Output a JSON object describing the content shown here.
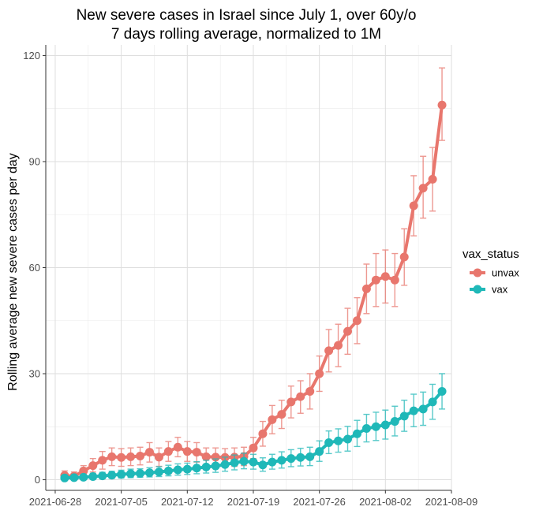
{
  "chart_data": {
    "type": "line",
    "title": "New severe cases in Israel since July 1, over 60y/o",
    "subtitle": "7 days rolling average, normalized to 1M",
    "xlabel": "",
    "ylabel": "Rolling average new severe cases per day",
    "x_ticks": [
      "2021-06-28",
      "2021-07-05",
      "2021-07-12",
      "2021-07-19",
      "2021-07-26",
      "2021-08-02",
      "2021-08-09"
    ],
    "y_ticks": [
      0,
      30,
      60,
      90,
      120
    ],
    "xlim": [
      "2021-06-27",
      "2021-08-09"
    ],
    "ylim": [
      -3,
      123
    ],
    "grid": true,
    "legend": {
      "title": "vax_status",
      "position": "right"
    },
    "x": [
      "2021-06-29",
      "2021-06-30",
      "2021-07-01",
      "2021-07-02",
      "2021-07-03",
      "2021-07-04",
      "2021-07-05",
      "2021-07-06",
      "2021-07-07",
      "2021-07-08",
      "2021-07-09",
      "2021-07-10",
      "2021-07-11",
      "2021-07-12",
      "2021-07-13",
      "2021-07-14",
      "2021-07-15",
      "2021-07-16",
      "2021-07-17",
      "2021-07-18",
      "2021-07-19",
      "2021-07-20",
      "2021-07-21",
      "2021-07-22",
      "2021-07-23",
      "2021-07-24",
      "2021-07-25",
      "2021-07-26",
      "2021-07-27",
      "2021-07-28",
      "2021-07-29",
      "2021-07-30",
      "2021-07-31",
      "2021-08-01",
      "2021-08-02",
      "2021-08-03",
      "2021-08-04",
      "2021-08-05",
      "2021-08-06",
      "2021-08-07",
      "2021-08-08"
    ],
    "series": [
      {
        "name": "unvax",
        "color": "#e8766d",
        "values": [
          1.2,
          1.0,
          2.5,
          4.0,
          5.5,
          6.5,
          6.3,
          6.5,
          6.7,
          7.8,
          6.4,
          8.0,
          9.2,
          8.0,
          7.8,
          6.5,
          6.4,
          6.3,
          6.4,
          6.6,
          9.0,
          13.0,
          17.0,
          18.5,
          22.0,
          23.5,
          25.0,
          30.0,
          36.5,
          38.0,
          42.0,
          45.0,
          54.0,
          56.5,
          57.5,
          56.5,
          63.0,
          77.5,
          82.5,
          85.0,
          106.0
        ],
        "error_low": [
          0.2,
          0.1,
          1.0,
          2.2,
          3.0,
          4.0,
          3.8,
          4.0,
          4.2,
          5.0,
          3.8,
          5.2,
          6.5,
          5.2,
          5.0,
          4.0,
          3.8,
          3.7,
          3.8,
          4.0,
          6.0,
          9.5,
          13.0,
          14.5,
          17.5,
          18.8,
          20.0,
          25.0,
          30.5,
          32.0,
          35.5,
          38.5,
          47.0,
          49.0,
          50.0,
          49.0,
          55.0,
          69.0,
          74.0,
          76.0,
          96.0
        ],
        "error_high": [
          2.5,
          2.2,
          4.0,
          6.0,
          8.0,
          9.0,
          8.8,
          9.0,
          9.2,
          10.5,
          9.0,
          10.8,
          12.0,
          10.8,
          10.5,
          9.0,
          9.0,
          8.8,
          9.0,
          9.2,
          12.0,
          16.5,
          21.0,
          22.5,
          26.5,
          28.0,
          30.0,
          35.0,
          42.5,
          44.0,
          48.5,
          51.5,
          61.0,
          64.0,
          65.0,
          64.0,
          71.0,
          86.0,
          91.5,
          94.0,
          116.5
        ]
      },
      {
        "name": "vax",
        "color": "#1fb8b8",
        "values": [
          0.5,
          0.6,
          0.7,
          0.9,
          1.1,
          1.3,
          1.5,
          1.7,
          1.8,
          2.0,
          2.2,
          2.5,
          2.8,
          3.0,
          3.3,
          3.6,
          3.9,
          4.3,
          4.8,
          5.2,
          5.0,
          4.2,
          5.0,
          5.5,
          6.0,
          6.3,
          6.5,
          8.0,
          10.5,
          11.0,
          11.5,
          13.0,
          14.5,
          15.0,
          15.5,
          16.5,
          18.0,
          19.5,
          20.0,
          22.0,
          25.0
        ],
        "error_low": [
          0.0,
          0.0,
          0.1,
          0.2,
          0.3,
          0.4,
          0.5,
          0.6,
          0.7,
          0.8,
          0.9,
          1.1,
          1.3,
          1.5,
          1.7,
          1.9,
          2.1,
          2.4,
          2.8,
          3.1,
          3.0,
          2.4,
          3.0,
          3.3,
          3.7,
          3.9,
          4.0,
          5.2,
          7.4,
          7.8,
          8.1,
          9.4,
          10.7,
          11.1,
          11.5,
          12.4,
          13.7,
          15.0,
          15.4,
          17.1,
          20.0
        ],
        "error_high": [
          1.2,
          1.3,
          1.5,
          1.8,
          2.1,
          2.4,
          2.7,
          3.0,
          3.1,
          3.4,
          3.7,
          4.1,
          4.5,
          4.7,
          5.1,
          5.5,
          5.9,
          6.4,
          7.0,
          7.5,
          7.2,
          6.2,
          7.2,
          7.9,
          8.5,
          8.9,
          9.2,
          11.0,
          13.8,
          14.4,
          15.1,
          16.8,
          18.5,
          19.1,
          19.7,
          20.8,
          22.5,
          24.2,
          24.8,
          27.0,
          30.0
        ]
      }
    ]
  }
}
